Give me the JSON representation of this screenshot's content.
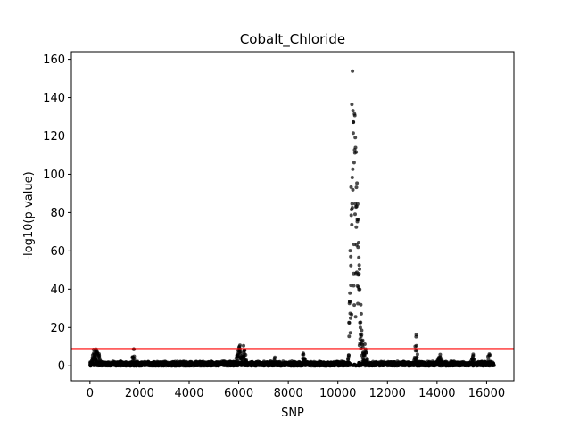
{
  "chart_data": {
    "type": "scatter",
    "title": "Cobalt_Chloride",
    "xlabel": "SNP",
    "ylabel": "-log10(p-value)",
    "xlim": [
      -750,
      17100
    ],
    "ylim": [
      -7.8,
      164
    ],
    "xticks": [
      0,
      2000,
      4000,
      6000,
      8000,
      10000,
      12000,
      14000,
      16000
    ],
    "yticks": [
      0,
      20,
      40,
      60,
      80,
      100,
      120,
      140,
      160
    ],
    "xtick_labels": [
      "0",
      "2000",
      "4000",
      "6000",
      "8000",
      "10000",
      "12000",
      "14000",
      "16000"
    ],
    "ytick_labels": [
      "0",
      "20",
      "40",
      "60",
      "80",
      "100",
      "120",
      "140",
      "160"
    ],
    "n_points": 16300,
    "threshold": {
      "y": 9,
      "color": "#ff0000"
    },
    "point_color": "#000000",
    "grid": false,
    "peaks": [
      {
        "x": 150,
        "y": 17
      },
      {
        "x": 300,
        "y": 13
      },
      {
        "x": 1750,
        "y": 12
      },
      {
        "x": 6000,
        "y": 17
      },
      {
        "x": 6200,
        "y": 14
      },
      {
        "x": 7450,
        "y": 10
      },
      {
        "x": 8620,
        "y": 13
      },
      {
        "x": 10600,
        "y": 156
      },
      {
        "x": 11100,
        "y": 14
      },
      {
        "x": 13150,
        "y": 19
      },
      {
        "x": 14100,
        "y": 8
      },
      {
        "x": 15450,
        "y": 7
      },
      {
        "x": 16100,
        "y": 8
      }
    ]
  }
}
